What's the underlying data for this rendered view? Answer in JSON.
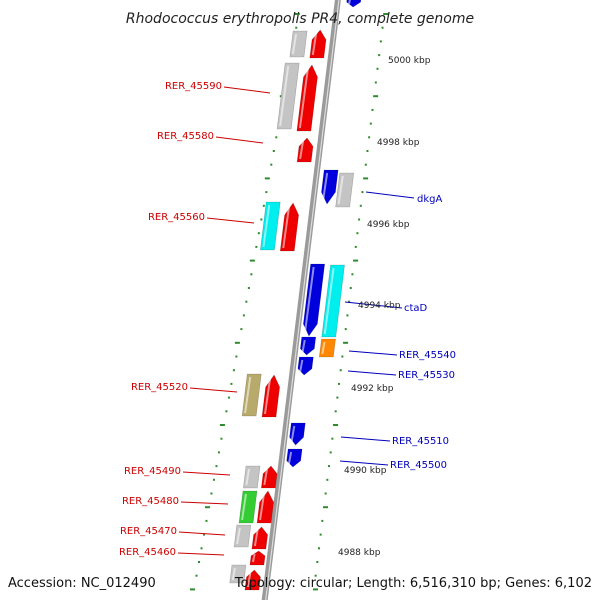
{
  "title": "Rhodococcus erythropolis PR4, complete genome",
  "footer": {
    "accession": "Accession: NC_012490",
    "summary": "Topology: circular; Length: 6,516,310 bp; Genes: 6,102"
  },
  "colors": {
    "red": "#ee0000",
    "blue": "#0000dd",
    "cyan": "#00eeee",
    "gray": "#c4c4c4",
    "khaki": "#b8aa6a",
    "green": "#33cc33",
    "orange": "#ff8800",
    "tick": "#2e8b2e",
    "backbone": "#9a9a9a",
    "red_label": "#cc0000",
    "blue_label": "#0000bb"
  },
  "kbp_labels": [
    "5000 kbp",
    "4998 kbp",
    "4996 kbp",
    "4994 kbp",
    "4992 kbp",
    "4990 kbp",
    "4988 kbp"
  ],
  "left_labels": [
    "RER_45590",
    "RER_45580",
    "RER_45560",
    "RER_45520",
    "RER_45490",
    "RER_45480",
    "RER_45470",
    "RER_45460"
  ],
  "right_labels": [
    "dkgA",
    "ctaD",
    "RER_45540",
    "RER_45530",
    "RER_45510",
    "RER_45500"
  ]
}
